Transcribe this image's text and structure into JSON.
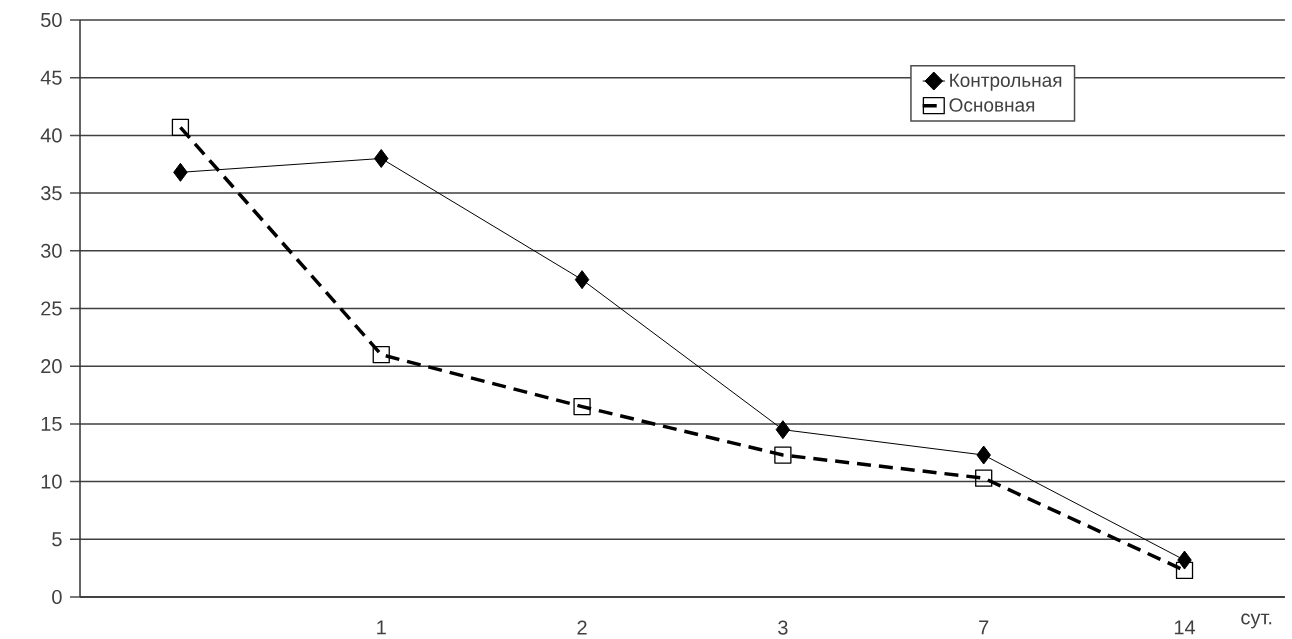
{
  "chart_data": {
    "type": "line",
    "xlabel": "сут.",
    "categories": [
      null,
      "1",
      "2",
      "3",
      "7",
      "14"
    ],
    "series": [
      {
        "name": "Контрольная",
        "color": "#000000",
        "marker": "diamond",
        "line_style": "solid",
        "values": [
          36.8,
          38,
          27.5,
          14.5,
          12.3,
          3.2
        ]
      },
      {
        "name": "Основная",
        "color": "#000000",
        "marker": "square",
        "line_style": "dashed",
        "values": [
          40.7,
          21,
          16.5,
          12.3,
          10.3,
          2.3
        ]
      }
    ],
    "ylim": [
      0,
      50
    ],
    "yticks": [
      0,
      5,
      10,
      15,
      20,
      25,
      30,
      35,
      40,
      45,
      50
    ],
    "grid": "y",
    "legend": "top right"
  }
}
